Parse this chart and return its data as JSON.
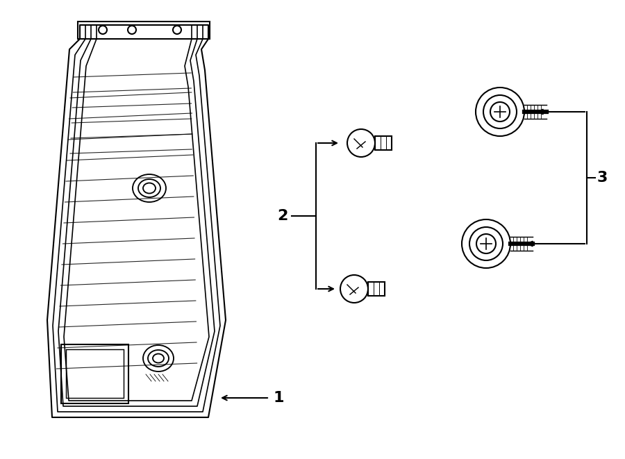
{
  "bg_color": "#ffffff",
  "line_color": "#000000",
  "line_width": 1.5,
  "fig_width": 9.0,
  "fig_height": 6.61,
  "label_1": "1",
  "label_2": "2",
  "label_3": "3"
}
